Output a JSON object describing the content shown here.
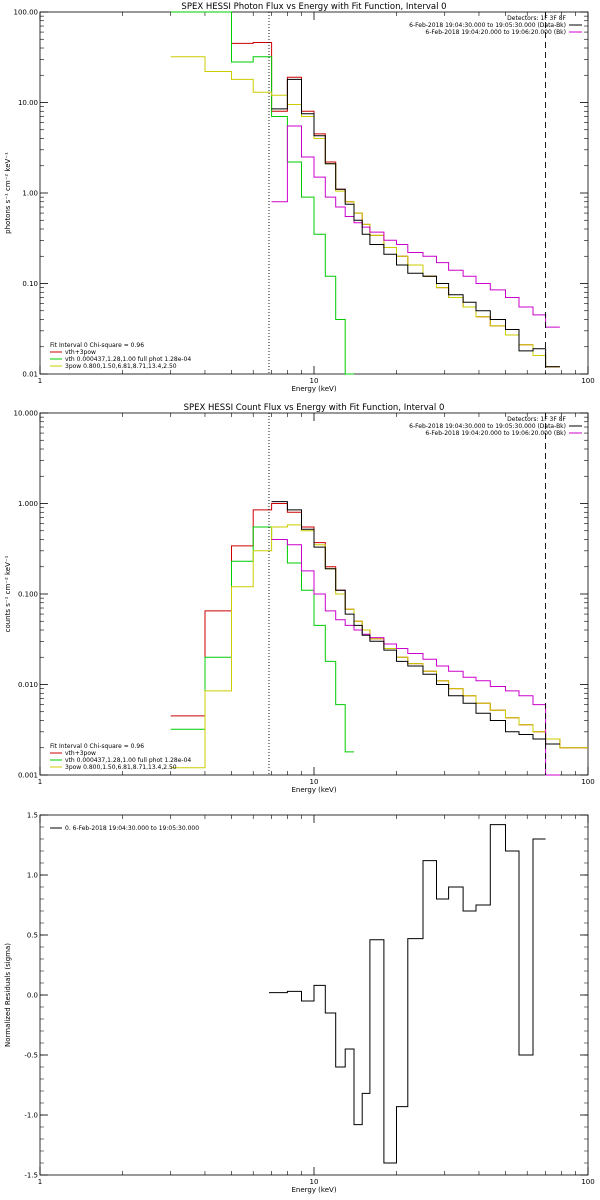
{
  "colors": {
    "data": "#000000",
    "total": "#cc0000",
    "thermal": "#00cc00",
    "powerlaw": "#cccc00",
    "background": "#cc00cc"
  },
  "chart_data": [
    {
      "type": "line",
      "title": "SPEX HESSI Photon Flux vs Energy with Fit Function, Interval 0",
      "xlabel": "Energy (keV)",
      "ylabel": "photons s⁻¹ cm⁻² keV⁻¹",
      "xscale": "log",
      "yscale": "log",
      "xlim": [
        1,
        100
      ],
      "ylim": [
        0.01,
        100
      ],
      "xticks": [
        {
          "v": 1,
          "l": "1"
        },
        {
          "v": 10,
          "l": "10"
        },
        {
          "v": 100,
          "l": "100"
        }
      ],
      "yticks": [
        {
          "v": 100,
          "l": "100.00"
        },
        {
          "v": 10,
          "l": "10.00"
        },
        {
          "v": 1,
          "l": "1.00"
        },
        {
          "v": 0.1,
          "l": "0.10"
        },
        {
          "v": 0.01,
          "l": "0.01"
        }
      ],
      "vlines": [
        {
          "x": 6.85,
          "style": "dotted"
        },
        {
          "x": 70,
          "style": "dashed"
        }
      ],
      "edges": [
        3,
        4,
        5,
        6,
        7,
        8,
        9,
        10,
        11,
        12,
        13,
        14,
        15,
        16,
        18,
        20,
        22,
        25,
        28,
        31,
        35,
        39,
        44,
        50,
        56,
        63,
        70,
        79
      ],
      "annotations_right": [
        "Detectors: 1F 3F 8F",
        "6-Feb-2018 19:04:30.000 to 19:05:30.000 (Data-Bk)",
        "6-Feb-2018 19:04:20.000 to 19:06:20.000 (Bk)"
      ],
      "legend_left": [
        "Fit Interval 0   Chi-square = 0.96",
        "vth+3pow",
        "vth 0.000437,1.28,1.00  full phot 1.28e-04",
        "3pow 0.800,1.50,6.81,8.71,13.4,2.50"
      ],
      "series": [
        {
          "name": "vth+3pow",
          "color": "total",
          "values": [
            100,
            100,
            45,
            46,
            8,
            19,
            8,
            4.5,
            2.2,
            1.1,
            0.8,
            0.6,
            0.45,
            0.34,
            0.25,
            0.2,
            0.16,
            0.12,
            0.09,
            0.07,
            0.055,
            0.043,
            0.034,
            0.027,
            0.021,
            0.016,
            0.012
          ]
        },
        {
          "name": "vth",
          "color": "thermal",
          "values": [
            100,
            100,
            28,
            32,
            7,
            2.2,
            0.9,
            0.35,
            0.12,
            0.04,
            0.008
          ]
        },
        {
          "name": "3pow",
          "color": "powerlaw",
          "values": [
            32,
            22,
            18,
            13,
            12,
            9.5,
            7,
            4,
            2.1,
            1.05,
            0.8,
            0.6,
            0.45,
            0.34,
            0.25,
            0.2,
            0.16,
            0.12,
            0.09,
            0.07,
            0.055,
            0.043,
            0.034,
            0.027,
            0.021,
            0.016,
            0.012
          ]
        },
        {
          "name": "Bk",
          "color": "background",
          "values": [
            null,
            null,
            null,
            null,
            0.8,
            5.5,
            2.5,
            1.5,
            0.9,
            0.7,
            0.55,
            0.47,
            0.42,
            0.37,
            0.3,
            0.27,
            0.22,
            0.2,
            0.17,
            0.14,
            0.12,
            0.1,
            0.085,
            0.07,
            0.055,
            0.045,
            0.033
          ]
        },
        {
          "name": "Data-Bk",
          "color": "data",
          "values": [
            null,
            null,
            null,
            null,
            8.5,
            18,
            7.5,
            4.3,
            2.1,
            1.1,
            0.75,
            0.5,
            0.35,
            0.27,
            0.21,
            0.16,
            0.13,
            0.12,
            0.1,
            0.075,
            0.062,
            0.05,
            0.04,
            0.031,
            0.018,
            0.019,
            0.012
          ]
        }
      ]
    },
    {
      "type": "line",
      "title": "SPEX HESSI Count Flux vs Energy with Fit Function, Interval 0",
      "xlabel": "Energy (keV)",
      "ylabel": "counts s⁻¹ cm⁻² keV⁻¹",
      "xscale": "log",
      "yscale": "log",
      "xlim": [
        1,
        100
      ],
      "ylim": [
        0.001,
        10
      ],
      "xticks": [
        {
          "v": 1,
          "l": "1"
        },
        {
          "v": 10,
          "l": "10"
        },
        {
          "v": 100,
          "l": "100"
        }
      ],
      "yticks": [
        {
          "v": 10,
          "l": "10.000"
        },
        {
          "v": 1,
          "l": "1.000"
        },
        {
          "v": 0.1,
          "l": "0.100"
        },
        {
          "v": 0.01,
          "l": "0.010"
        },
        {
          "v": 0.001,
          "l": "0.001"
        }
      ],
      "vlines": [
        {
          "x": 6.85,
          "style": "dotted"
        },
        {
          "x": 70,
          "style": "dashed"
        }
      ],
      "edges": [
        3,
        4,
        5,
        6,
        7,
        8,
        9,
        10,
        11,
        12,
        13,
        14,
        15,
        16,
        18,
        20,
        22,
        25,
        28,
        31,
        35,
        39,
        44,
        50,
        56,
        63,
        70,
        79,
        100
      ],
      "annotations_right": [
        "Detectors: 1F 3F 8F",
        "6-Feb-2018 19:04:30.000 to 19:05:30.000 (Data-Bk)",
        "6-Feb-2018 19:04:20.000 to 19:06:20.000 (Bk)"
      ],
      "legend_left": [
        "Fit Interval 0   Chi-square = 0.96",
        "vth+3pow",
        "vth 0.000437,1.28,1.00  full phot 1.28e-04",
        "3pow 0.800,1.50,6.81,8.71,13.4,2.50"
      ],
      "series": [
        {
          "name": "vth+3pow",
          "color": "total",
          "values": [
            0.0045,
            0.065,
            0.34,
            0.85,
            1.0,
            0.8,
            0.55,
            0.37,
            0.2,
            0.11,
            0.068,
            0.05,
            0.04,
            0.032,
            0.025,
            0.02,
            0.017,
            0.014,
            0.011,
            0.009,
            0.0075,
            0.0062,
            0.0052,
            0.0043,
            0.0036,
            0.003,
            0.0025,
            0.002
          ]
        },
        {
          "name": "vth",
          "color": "thermal",
          "values": [
            0.0032,
            0.02,
            0.23,
            0.55,
            0.4,
            0.22,
            0.11,
            0.045,
            0.018,
            0.006,
            0.0018
          ]
        },
        {
          "name": "3pow",
          "color": "powerlaw",
          "values": [
            0.0012,
            0.0085,
            0.12,
            0.3,
            0.55,
            0.58,
            0.5,
            0.35,
            0.19,
            0.1,
            0.068,
            0.05,
            0.04,
            0.032,
            0.025,
            0.02,
            0.017,
            0.014,
            0.011,
            0.009,
            0.0075,
            0.0062,
            0.0052,
            0.0043,
            0.0036,
            0.003,
            0.0025,
            0.002
          ]
        },
        {
          "name": "Bk",
          "color": "background",
          "values": [
            null,
            null,
            null,
            null,
            0.4,
            0.35,
            0.18,
            0.1,
            0.065,
            0.052,
            0.045,
            0.04,
            0.036,
            0.033,
            0.028,
            0.025,
            0.022,
            0.019,
            0.016,
            0.014,
            0.012,
            0.011,
            0.0095,
            0.0085,
            0.0075,
            0.006,
            0.0006
          ]
        },
        {
          "name": "Data-Bk",
          "color": "data",
          "values": [
            null,
            null,
            null,
            null,
            1.05,
            0.85,
            0.52,
            0.33,
            0.19,
            0.11,
            0.06,
            0.045,
            0.035,
            0.03,
            0.024,
            0.018,
            0.016,
            0.013,
            0.01,
            0.0075,
            0.0062,
            0.0048,
            0.004,
            0.003,
            0.0028,
            0.0025,
            0.0022
          ]
        }
      ]
    },
    {
      "type": "line",
      "title": "",
      "xlabel": "Energy (keV)",
      "ylabel": "Normalized Residuals (sigma)",
      "xscale": "log",
      "yscale": "linear",
      "xlim": [
        1,
        100
      ],
      "ylim": [
        -1.5,
        1.5
      ],
      "xticks": [
        {
          "v": 1,
          "l": "1"
        },
        {
          "v": 10,
          "l": "10"
        },
        {
          "v": 100,
          "l": "100"
        }
      ],
      "yticks": [
        {
          "v": 1.5,
          "l": "1.5"
        },
        {
          "v": 1.0,
          "l": "1.0"
        },
        {
          "v": 0.5,
          "l": "0.5"
        },
        {
          "v": 0.0,
          "l": "0.0"
        },
        {
          "v": -0.5,
          "l": "-0.5"
        },
        {
          "v": -1.0,
          "l": "-1.0"
        },
        {
          "v": -1.5,
          "l": "-1.5"
        }
      ],
      "legend_left": [
        "0.  6-Feb-2018 19:04:30.000 to 19:05:30.000"
      ],
      "edges": [
        6.85,
        8,
        9,
        10,
        11,
        12,
        13,
        14,
        15,
        16,
        18,
        20,
        22,
        25,
        28,
        31,
        35,
        39,
        44,
        50,
        56,
        63,
        70
      ],
      "series": [
        {
          "name": "0.  6-Feb-2018 19:04:30.000 to 19:05:30.000",
          "color": "data",
          "values": [
            0.02,
            0.03,
            -0.05,
            0.08,
            -0.15,
            -0.6,
            -0.45,
            -1.08,
            -0.82,
            0.46,
            -1.4,
            -0.93,
            0.47,
            1.12,
            0.8,
            0.9,
            0.7,
            0.75,
            1.42,
            1.2,
            -0.5,
            1.3
          ]
        }
      ]
    }
  ]
}
